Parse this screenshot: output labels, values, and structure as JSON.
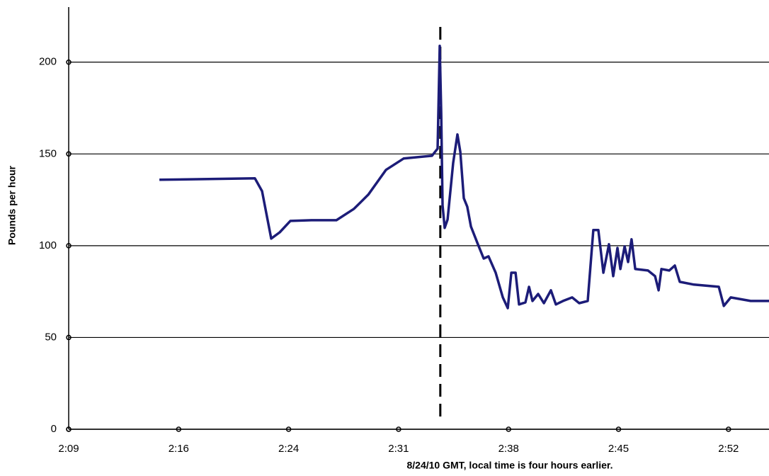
{
  "chart_data": {
    "type": "line",
    "xlabel": "8/24/10 GMT, local time is four hours earlier.",
    "ylabel": "Pounds per hour",
    "xlim": [
      9,
      55.17
    ],
    "ylim": [
      0,
      230
    ],
    "xticks": [
      {
        "value": 9,
        "label": "2:09"
      },
      {
        "value": 16.25,
        "label": "2:16"
      },
      {
        "value": 23.5,
        "label": "2:24"
      },
      {
        "value": 30.75,
        "label": "2:31"
      },
      {
        "value": 38,
        "label": "2:38"
      },
      {
        "value": 45.25,
        "label": "2:45"
      },
      {
        "value": 52.5,
        "label": "2:52"
      }
    ],
    "yticks": [
      0,
      50,
      100,
      150,
      200
    ],
    "grid": true,
    "vline_x": 33.5,
    "series": [
      {
        "color": "#1c1c78",
        "x": [
          14.98,
          21.28,
          21.75,
          22.35,
          22.91,
          23.61,
          25.01,
          26.65,
          27.81,
          28.75,
          29.92,
          31.08,
          32.95,
          33.32,
          33.46,
          33.56,
          33.65,
          33.79,
          33.98,
          34.35,
          34.63,
          34.82,
          35.05,
          35.28,
          35.52,
          35.98,
          36.36,
          36.68,
          37.15,
          37.62,
          37.95,
          38.18,
          38.46,
          38.69,
          39.11,
          39.35,
          39.58,
          39.95,
          40.33,
          40.79,
          41.12,
          41.59,
          42.19,
          42.66,
          43.22,
          43.59,
          43.92,
          44.25,
          44.62,
          44.9,
          45.18,
          45.37,
          45.65,
          45.88,
          46.11,
          46.35,
          47.19,
          47.66,
          47.89,
          48.08,
          48.59,
          48.96,
          49.29,
          50.22,
          51.86,
          52.19,
          52.65,
          53.96,
          55.17
        ],
        "values": [
          135.9,
          136.7,
          129.7,
          103.9,
          107.3,
          113.5,
          113.9,
          113.9,
          120.1,
          127.8,
          141.3,
          147.5,
          149,
          152.9,
          208.9,
          172.2,
          122,
          109.7,
          114.3,
          145.2,
          160.6,
          151,
          125.9,
          121.2,
          110.4,
          100.8,
          93,
          94.2,
          85.3,
          71.8,
          66,
          85.3,
          85.3,
          68,
          69.1,
          77.6,
          69.9,
          73.7,
          68.7,
          75.7,
          68,
          69.9,
          71.8,
          68.7,
          69.9,
          108.5,
          108.5,
          85.3,
          100.8,
          83.4,
          98.8,
          87.3,
          99.6,
          91.1,
          103.5,
          87.3,
          86.5,
          83.4,
          75.7,
          87.3,
          86.5,
          89.2,
          80.3,
          78.8,
          77.6,
          67.2,
          71.8,
          69.9,
          69.9
        ]
      }
    ]
  }
}
